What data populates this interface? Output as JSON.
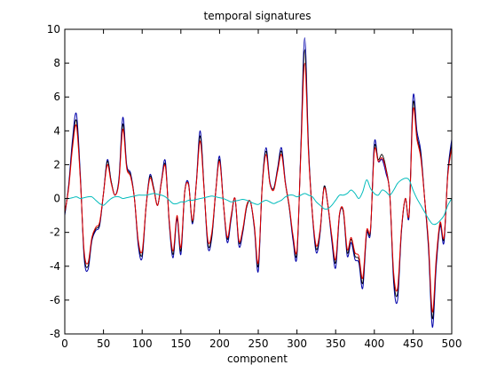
{
  "chart_data": {
    "type": "line",
    "title": "temporal signatures",
    "xlabel": "component",
    "ylabel": "",
    "xlim": [
      0,
      500
    ],
    "ylim": [
      -8,
      10
    ],
    "xticks": [
      0,
      50,
      100,
      150,
      200,
      250,
      300,
      350,
      400,
      450,
      500
    ],
    "yticks": [
      -8,
      -6,
      -4,
      -2,
      0,
      2,
      4,
      6,
      8,
      10
    ],
    "grid": false,
    "legend": "none",
    "x": [
      0,
      5,
      10,
      15,
      20,
      25,
      30,
      35,
      40,
      45,
      50,
      55,
      60,
      65,
      70,
      75,
      80,
      85,
      90,
      95,
      100,
      105,
      110,
      115,
      120,
      125,
      130,
      135,
      140,
      145,
      150,
      155,
      160,
      165,
      170,
      175,
      180,
      185,
      190,
      195,
      200,
      205,
      210,
      215,
      220,
      225,
      230,
      235,
      240,
      245,
      250,
      255,
      260,
      265,
      270,
      275,
      280,
      285,
      290,
      295,
      300,
      305,
      310,
      315,
      320,
      325,
      330,
      335,
      340,
      345,
      350,
      355,
      360,
      365,
      370,
      375,
      380,
      385,
      390,
      395,
      400,
      405,
      410,
      415,
      420,
      425,
      430,
      435,
      440,
      445,
      450,
      455,
      460,
      465,
      470,
      475,
      480,
      485,
      490,
      495,
      500
    ],
    "series": [
      {
        "color": "#0000aa",
        "width": 1.0,
        "values": [
          -1.0,
          0.8,
          3.5,
          5.0,
          1.5,
          -3.5,
          -4.2,
          -2.5,
          -1.9,
          -1.6,
          0.3,
          2.3,
          1.0,
          0.2,
          1.2,
          4.8,
          2.0,
          1.5,
          0.0,
          -2.8,
          -3.5,
          -0.5,
          1.4,
          0.6,
          -0.4,
          1.1,
          2.2,
          -1.5,
          -3.5,
          -1.2,
          -3.3,
          0.4,
          0.9,
          -1.5,
          1.0,
          4.0,
          0.6,
          -2.9,
          -2.3,
          0.4,
          2.5,
          -0.3,
          -2.6,
          -1.2,
          0.0,
          -2.8,
          -2.0,
          -0.5,
          -0.2,
          -1.8,
          -4.3,
          0.7,
          3.0,
          1.0,
          0.6,
          1.8,
          3.0,
          1.0,
          -0.5,
          -2.5,
          -3.4,
          3.0,
          9.5,
          3.0,
          -1.0,
          -3.2,
          -2.0,
          0.7,
          -0.4,
          -2.5,
          -4.1,
          -1.0,
          -0.8,
          -3.4,
          -2.6,
          -3.6,
          -3.8,
          -5.3,
          -2.1,
          -2.0,
          3.3,
          2.2,
          2.3,
          1.5,
          0.2,
          -5.0,
          -6.0,
          -2.0,
          0.0,
          -1.0,
          6.0,
          4.0,
          2.8,
          0.0,
          -3.0,
          -7.6,
          -4.0,
          -1.6,
          -2.6,
          1.6,
          3.5
        ]
      },
      {
        "color": "#000000",
        "width": 0.9,
        "values": [
          -0.9,
          0.7,
          3.2,
          4.6,
          1.3,
          -3.3,
          -4.0,
          -2.4,
          -1.8,
          -1.5,
          0.3,
          2.2,
          1.0,
          0.2,
          1.1,
          4.4,
          1.9,
          1.4,
          0.0,
          -2.6,
          -3.3,
          -0.5,
          1.3,
          0.6,
          -0.4,
          1.0,
          2.0,
          -1.4,
          -3.3,
          -1.1,
          -3.1,
          0.4,
          0.8,
          -1.4,
          0.9,
          3.7,
          0.6,
          -2.7,
          -2.2,
          0.4,
          2.3,
          -0.3,
          -2.4,
          -1.1,
          0.0,
          -2.6,
          -1.9,
          -0.5,
          -0.2,
          -1.7,
          -4.0,
          0.7,
          2.8,
          0.9,
          0.6,
          1.7,
          2.8,
          0.9,
          -0.5,
          -2.3,
          -3.2,
          2.8,
          8.8,
          2.8,
          -0.9,
          -3.0,
          -1.9,
          0.7,
          -0.4,
          -2.3,
          -3.8,
          -0.9,
          -0.8,
          -3.2,
          -2.4,
          -3.4,
          -3.6,
          -5.0,
          -2.0,
          -1.9,
          3.0,
          2.3,
          2.6,
          1.8,
          0.2,
          -4.7,
          -5.6,
          -1.9,
          0.0,
          -0.9,
          5.6,
          3.7,
          2.6,
          0.0,
          -2.8,
          -7.1,
          -3.7,
          -1.5,
          -2.4,
          1.5,
          3.2
        ]
      },
      {
        "color": "#e60000",
        "width": 1.0,
        "values": [
          -0.8,
          0.6,
          3.0,
          4.3,
          1.2,
          -3.1,
          -3.8,
          -2.3,
          -1.7,
          -1.4,
          0.3,
          2.0,
          0.9,
          0.2,
          1.0,
          4.1,
          1.8,
          1.3,
          0.0,
          -2.5,
          -3.1,
          -0.5,
          1.2,
          0.5,
          -0.4,
          1.0,
          1.9,
          -1.3,
          -3.1,
          -1.0,
          -2.9,
          0.4,
          0.8,
          -1.3,
          0.9,
          3.4,
          0.5,
          -2.5,
          -2.0,
          0.4,
          2.2,
          -0.3,
          -2.3,
          -1.0,
          0.0,
          -2.5,
          -1.8,
          -0.4,
          -0.2,
          -1.6,
          -3.8,
          0.6,
          2.6,
          0.9,
          0.5,
          1.6,
          2.6,
          0.9,
          -0.4,
          -2.2,
          -3.0,
          2.6,
          8.0,
          2.6,
          -0.9,
          -2.8,
          -1.8,
          0.6,
          -0.4,
          -2.2,
          -3.6,
          -0.9,
          -0.7,
          -3.0,
          -2.3,
          -3.2,
          -3.4,
          -4.7,
          -1.9,
          -1.8,
          2.8,
          2.2,
          2.4,
          1.7,
          0.2,
          -4.4,
          -5.3,
          -1.8,
          0.0,
          -0.9,
          5.2,
          3.5,
          2.4,
          0.0,
          -2.6,
          -6.7,
          -3.5,
          -1.4,
          -2.3,
          1.4,
          3.0
        ]
      },
      {
        "color": "#00bbbb",
        "width": 1.0,
        "values": [
          0.0,
          0.0,
          0.05,
          0.1,
          0.0,
          0.05,
          0.1,
          0.1,
          -0.1,
          -0.3,
          -0.4,
          -0.2,
          0.0,
          0.1,
          0.1,
          0.0,
          0.05,
          0.1,
          0.15,
          0.2,
          0.2,
          0.2,
          0.25,
          0.3,
          0.25,
          0.2,
          0.1,
          -0.1,
          -0.3,
          -0.3,
          -0.2,
          -0.2,
          -0.1,
          -0.1,
          -0.05,
          0.0,
          0.05,
          0.1,
          0.15,
          0.1,
          0.05,
          0.0,
          -0.1,
          -0.2,
          -0.15,
          -0.1,
          -0.05,
          -0.1,
          -0.2,
          -0.3,
          -0.35,
          -0.2,
          -0.1,
          -0.2,
          -0.3,
          -0.2,
          -0.1,
          0.1,
          0.2,
          0.2,
          0.1,
          0.2,
          0.3,
          0.2,
          0.1,
          -0.2,
          -0.4,
          -0.6,
          -0.6,
          -0.4,
          -0.1,
          0.2,
          0.2,
          0.3,
          0.5,
          0.3,
          0.0,
          0.4,
          1.1,
          0.6,
          0.3,
          0.2,
          0.5,
          0.4,
          0.2,
          0.5,
          0.9,
          1.1,
          1.2,
          1.1,
          0.5,
          0.0,
          -0.4,
          -0.8,
          -1.2,
          -1.5,
          -1.5,
          -1.3,
          -1.0,
          -0.4,
          0.0
        ]
      }
    ]
  }
}
